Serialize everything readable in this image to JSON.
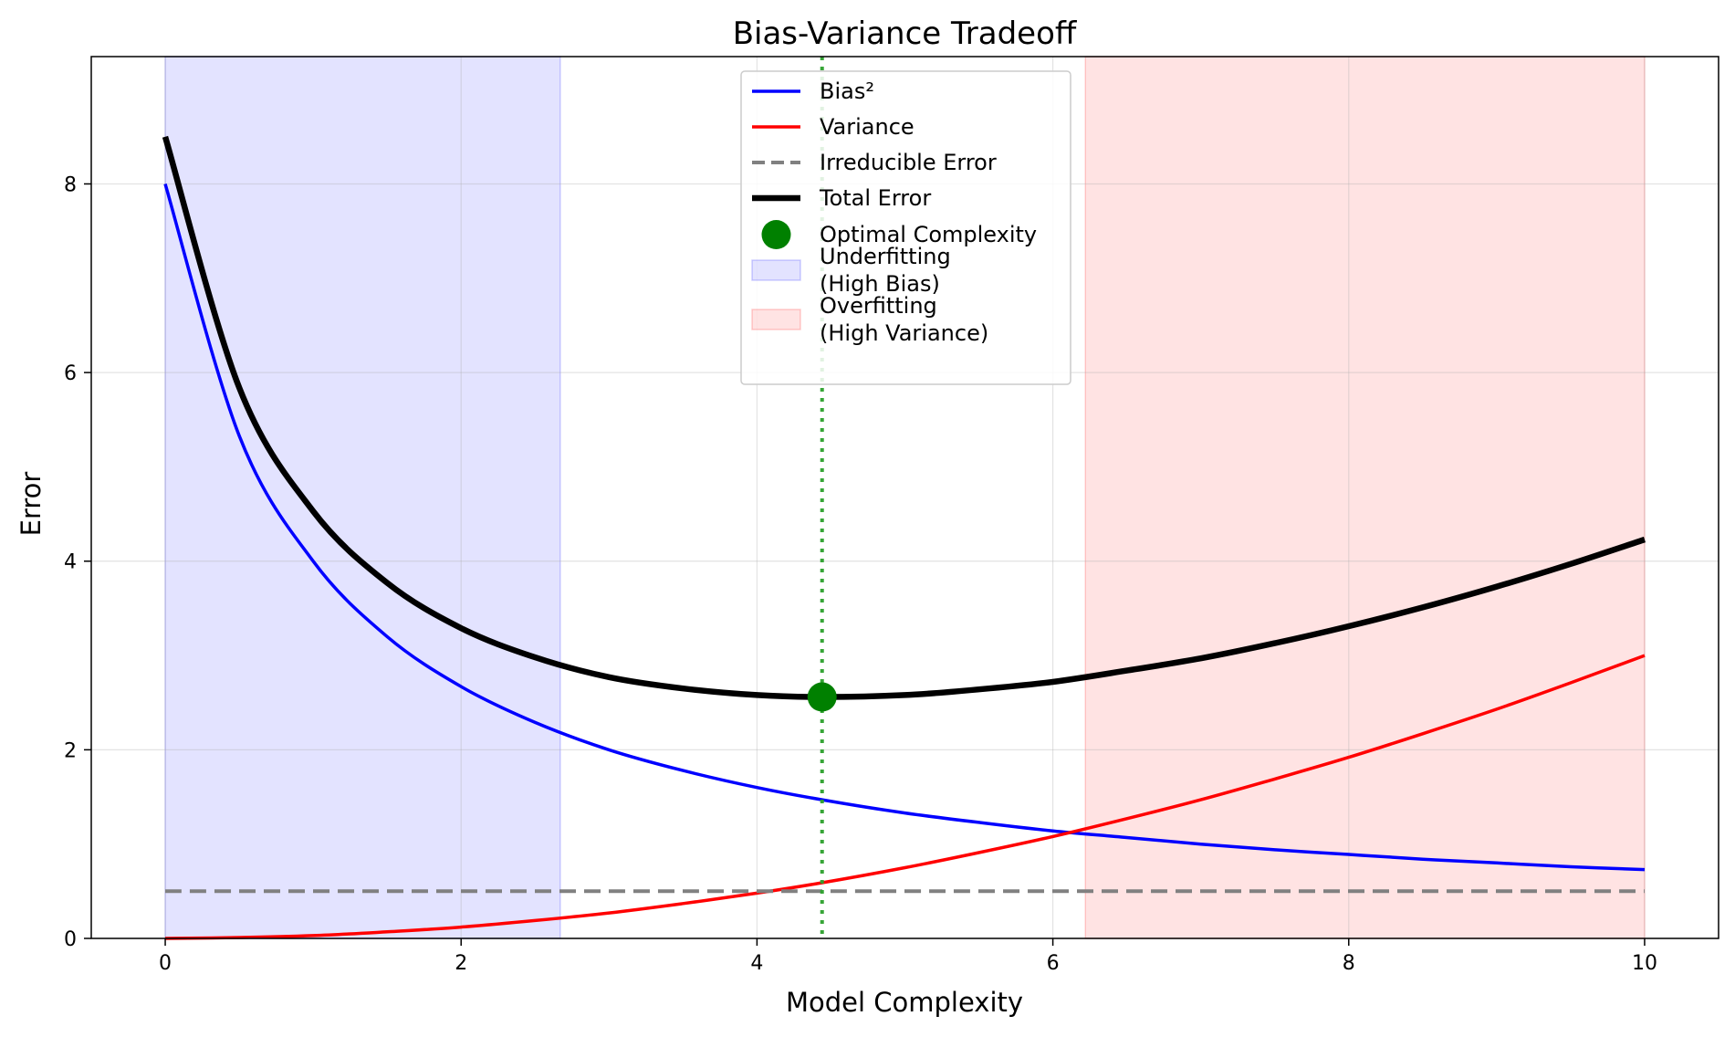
{
  "chart_data": {
    "type": "line",
    "title": "Bias-Variance Tradeoff",
    "xlabel": "Model Complexity",
    "ylabel": "Error",
    "xlim": [
      -0.5,
      10.5
    ],
    "ylim": [
      0,
      9.35
    ],
    "xticks": [
      0,
      2,
      4,
      6,
      8,
      10
    ],
    "yticks": [
      0,
      2,
      4,
      6,
      8
    ],
    "grid": true,
    "legend_position": "upper-center",
    "x": [
      0,
      0.5,
      1,
      1.5,
      2,
      2.5,
      3,
      3.5,
      4,
      4.44,
      5,
      5.5,
      6,
      6.5,
      7,
      7.5,
      8,
      8.5,
      9,
      9.5,
      10
    ],
    "series": [
      {
        "name": "Bias²",
        "color": "#0000ff",
        "style": "solid",
        "values": [
          8.0,
          5.33,
          4.0,
          3.2,
          2.67,
          2.29,
          2.0,
          1.78,
          1.6,
          1.47,
          1.33,
          1.23,
          1.14,
          1.07,
          1.0,
          0.94,
          0.89,
          0.84,
          0.8,
          0.76,
          0.73
        ]
      },
      {
        "name": "Variance",
        "color": "#ff0000",
        "style": "solid",
        "values": [
          0.0,
          0.01,
          0.03,
          0.07,
          0.12,
          0.19,
          0.27,
          0.37,
          0.48,
          0.59,
          0.75,
          0.91,
          1.08,
          1.27,
          1.47,
          1.69,
          1.92,
          2.17,
          2.43,
          2.71,
          3.0
        ]
      },
      {
        "name": "Irreducible Error",
        "color": "#808080",
        "style": "dashed",
        "values": [
          0.5,
          0.5,
          0.5,
          0.5,
          0.5,
          0.5,
          0.5,
          0.5,
          0.5,
          0.5,
          0.5,
          0.5,
          0.5,
          0.5,
          0.5,
          0.5,
          0.5,
          0.5,
          0.5,
          0.5,
          0.5
        ]
      },
      {
        "name": "Total Error",
        "color": "#000000",
        "style": "solid-thick",
        "values": [
          8.5,
          5.84,
          4.53,
          3.77,
          3.29,
          2.98,
          2.77,
          2.65,
          2.58,
          2.56,
          2.58,
          2.64,
          2.72,
          2.84,
          2.97,
          3.13,
          3.31,
          3.51,
          3.73,
          3.97,
          4.23
        ]
      }
    ],
    "optimal_point": {
      "name": "Optimal Complexity",
      "x": 4.44,
      "y": 2.56,
      "color": "#008000"
    },
    "regions": [
      {
        "name": "Underfitting\n(High Bias)",
        "x_start": 0,
        "x_end": 2.67,
        "color": "#0000ff"
      },
      {
        "name": "Overfitting\n(High Variance)",
        "x_start": 6.22,
        "x_end": 10,
        "color": "#ff0000"
      }
    ],
    "legend": [
      {
        "label": "Bias²",
        "kind": "line",
        "color": "#0000ff"
      },
      {
        "label": "Variance",
        "kind": "line",
        "color": "#ff0000"
      },
      {
        "label": "Irreducible Error",
        "kind": "dashed",
        "color": "#808080"
      },
      {
        "label": "Total Error",
        "kind": "thick",
        "color": "#000000"
      },
      {
        "label": "Optimal Complexity",
        "kind": "dot",
        "color": "#008000"
      },
      {
        "label": "Underfitting\n(High Bias)",
        "kind": "patch",
        "color": "#0000ff"
      },
      {
        "label": "Overfitting\n(High Variance)",
        "kind": "patch",
        "color": "#ff0000"
      }
    ]
  }
}
